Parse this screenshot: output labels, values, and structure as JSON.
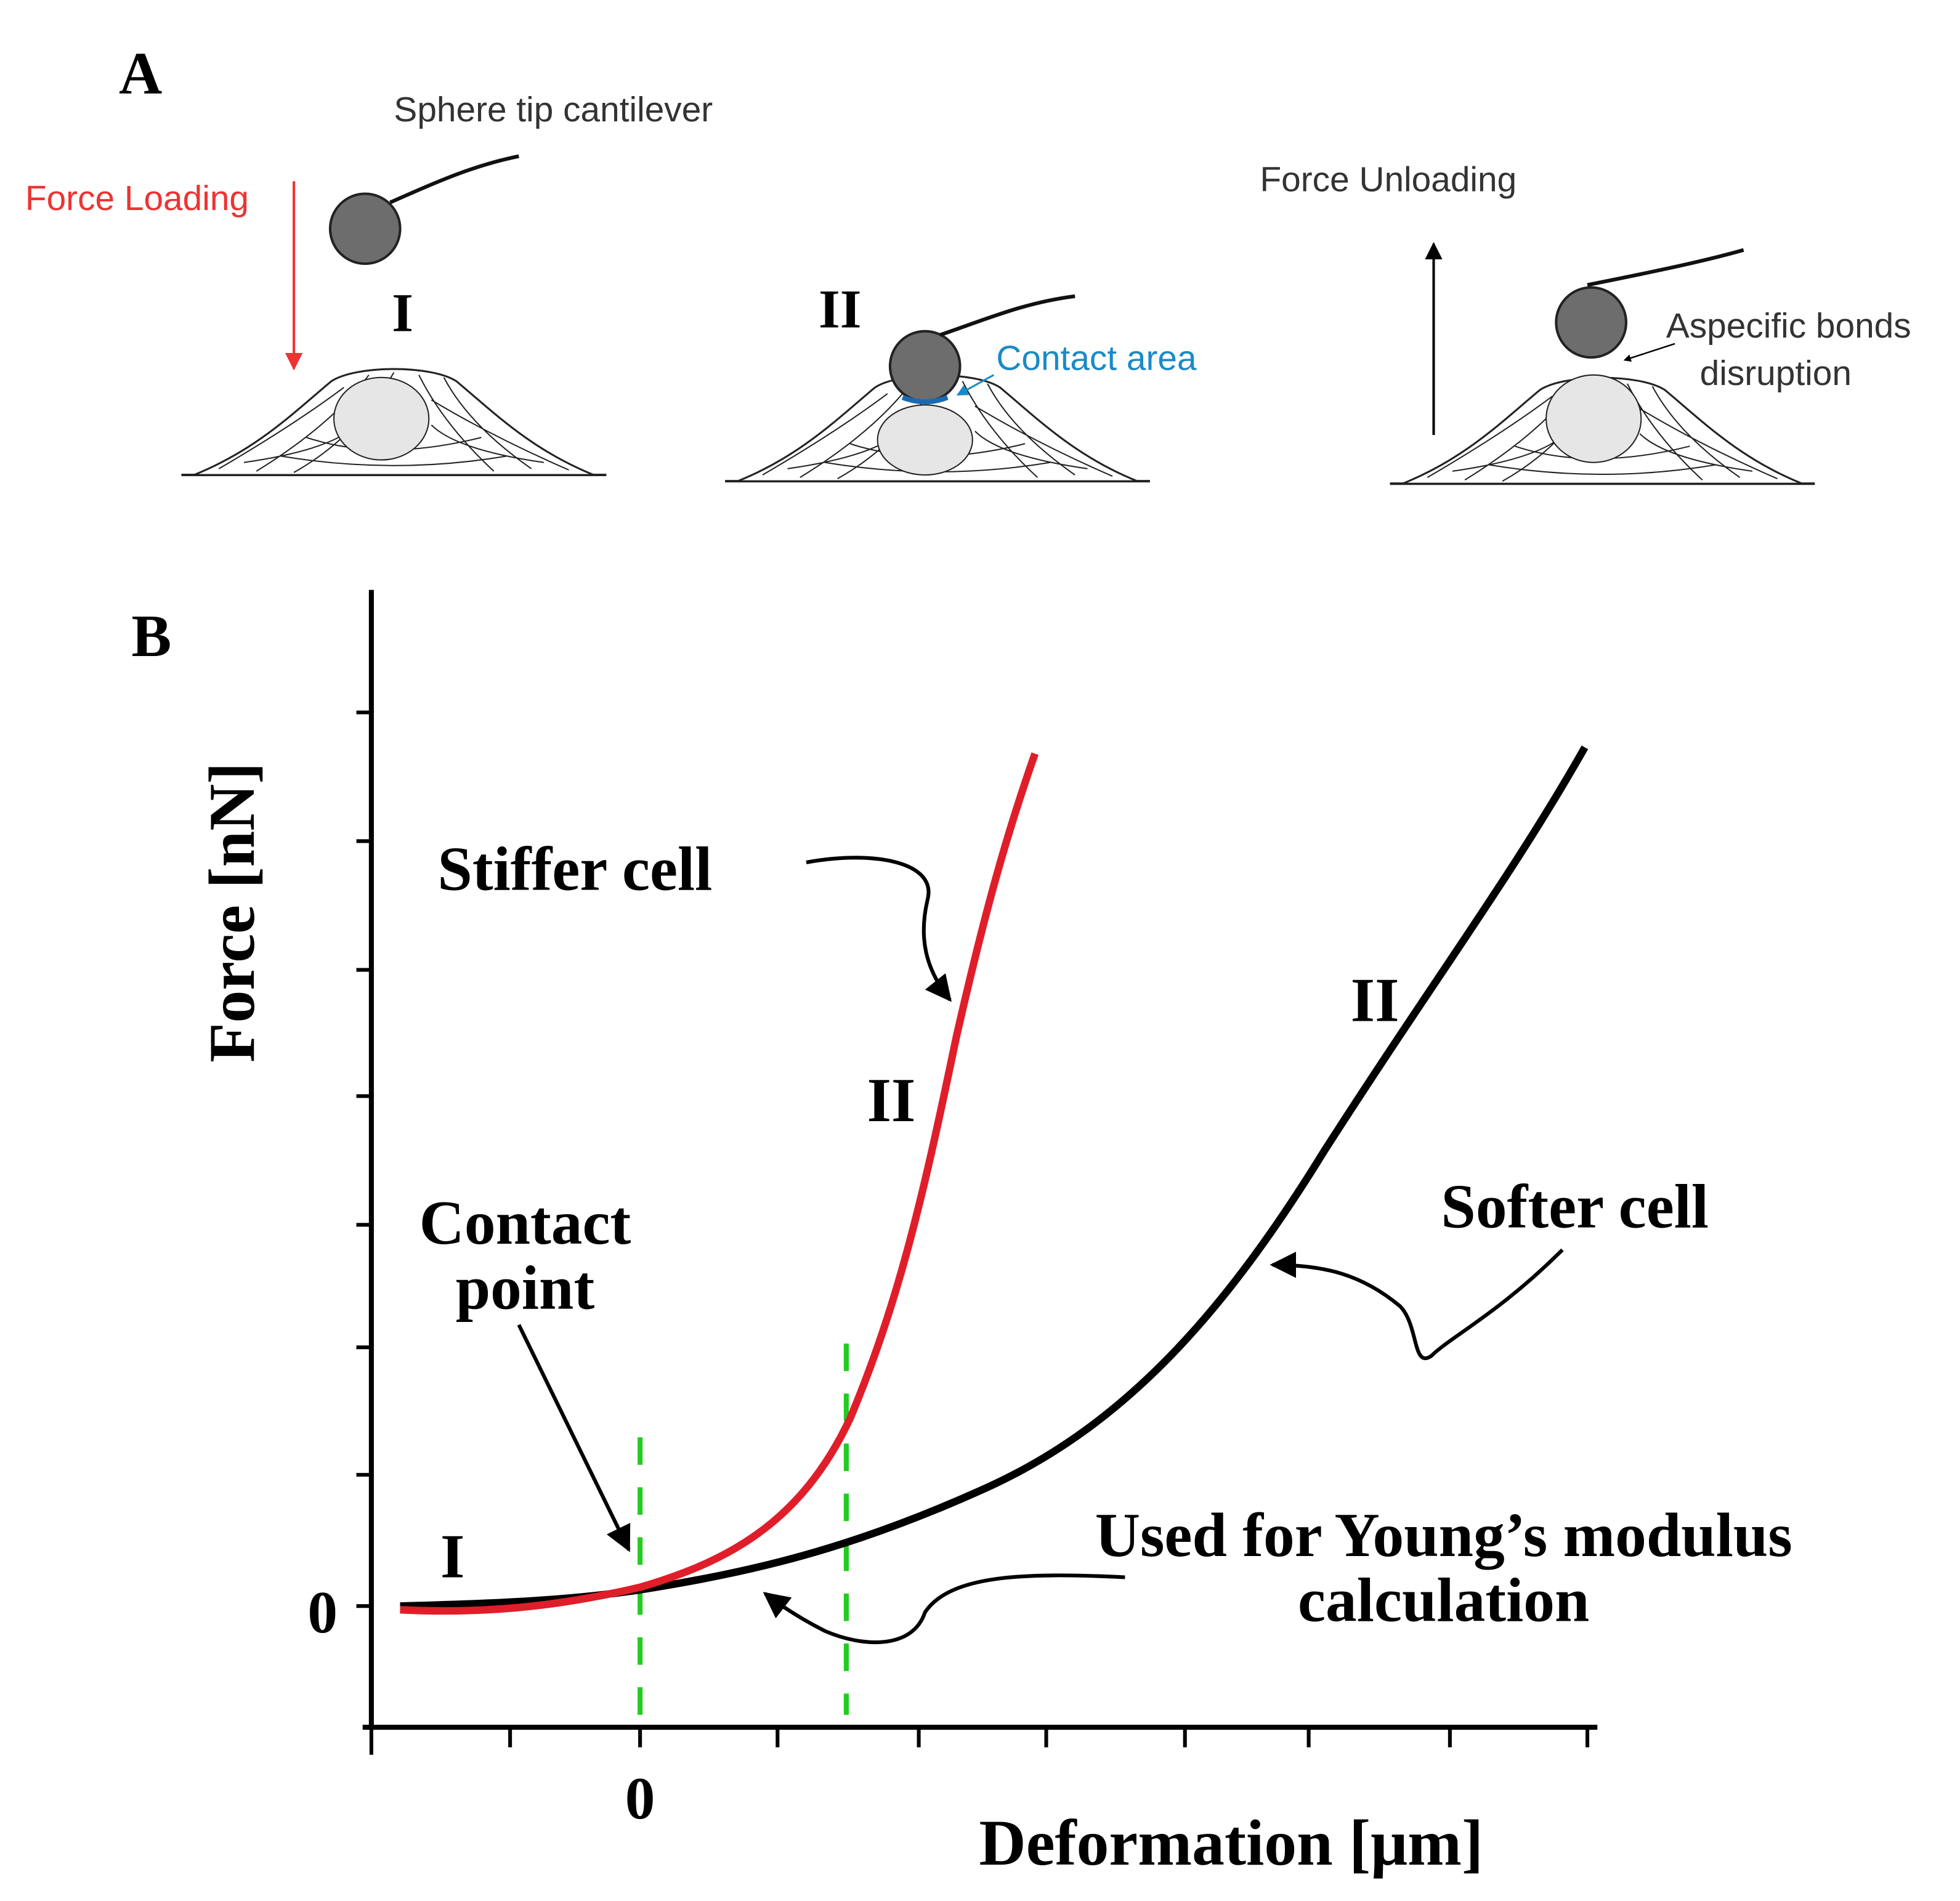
{
  "panel_a": {
    "label": "A",
    "cantilever_label": "Sphere tip cantilever",
    "force_loading": "Force Loading",
    "force_unloading": "Force Unloading",
    "stage_labels": [
      "I",
      "II"
    ],
    "contact_area": "Contact area",
    "aspecific_bonds": [
      "Aspecific bonds",
      "disruption"
    ]
  },
  "panel_b": {
    "label": "B",
    "y_axis_label": "Force [nN]",
    "x_axis_label": "Deformation [μm]",
    "y_zero": "0",
    "x_zero": "0",
    "annotations": {
      "stiffer_cell": "Stiffer cell",
      "softer_cell": "Softer cell",
      "stiff_region": "II",
      "soft_region": "II",
      "contact_region": "I",
      "contact_point": [
        "Contact",
        "point"
      ],
      "youngs": [
        "Used for Young’s modulus",
        "calculation"
      ]
    }
  }
}
